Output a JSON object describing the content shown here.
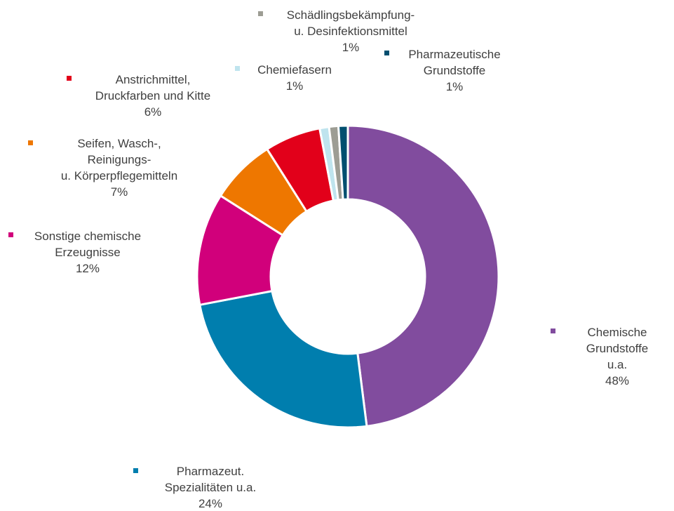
{
  "chart_data": {
    "type": "donut",
    "categories": [
      "Chemische\nGrundstoffe u.a.",
      "Pharmazeut.\nSpezialitäten  u.a.",
      "Sonstige chemische\nErzeugnisse",
      "Seifen, Wasch-,\nReinigungs-\nu. Körperpflegemitteln",
      "Anstrichmittel,\nDruckfarben und Kitte",
      "Chemiefasern",
      "Schädlingsbekämpfung-\nu. Desinfektionsmittel",
      "Pharmazeutische\nGrundstoffe"
    ],
    "values": [
      48,
      24,
      12,
      7,
      6,
      1,
      1,
      1
    ],
    "value_labels": [
      "48%",
      "24%",
      "12%",
      "7%",
      "6%",
      "1%",
      "1%",
      "1%"
    ],
    "colors": [
      "#814c9e",
      "#007eae",
      "#d1007b",
      "#ee7700",
      "#e2001a",
      "#bfe4ee",
      "#9d9d94",
      "#004f6f"
    ]
  }
}
